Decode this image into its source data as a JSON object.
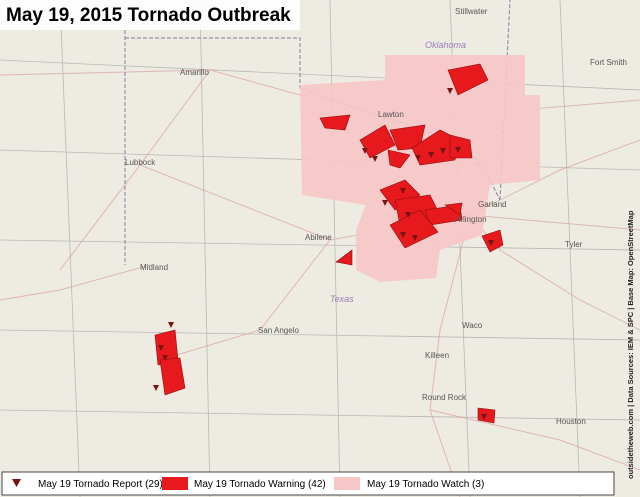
{
  "title": "May 19, 2015 Tornado Outbreak",
  "places": [
    "Stillwater",
    "Oklahoma",
    "Fort Smith",
    "Amarillo",
    "Lubbock",
    "Lawton",
    "Abilene",
    "Midland",
    "San Angelo",
    "Texas",
    "Arlington",
    "Garland",
    "Tyler",
    "Waco",
    "Killeen",
    "Round Rock",
    "Houston"
  ],
  "legend": [
    "May 19 Tornado Report (29)",
    "May 19 Tornado Warning (42)",
    "May 19 Tornado Watch (3)"
  ],
  "credit": "outsidetheweb.com | Data Sources: IEM & SPC | Base Map: OpenStreetMap"
}
